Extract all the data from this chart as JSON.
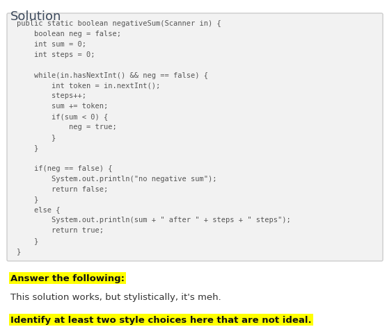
{
  "title": "Solution",
  "title_fontsize": 13,
  "title_color": "#3d4a5c",
  "code_box_bg": "#f2f2f2",
  "code_box_edge": "#cccccc",
  "code_lines": [
    "public static boolean negativeSum(Scanner in) {",
    "    boolean neg = false;",
    "    int sum = 0;",
    "    int steps = 0;",
    "",
    "    while(in.hasNextInt() && neg == false) {",
    "        int token = in.nextInt();",
    "        steps++;",
    "        sum += token;",
    "        if(sum < 0) {",
    "            neg = true;",
    "        }",
    "    }",
    "",
    "    if(neg == false) {",
    "        System.out.println(\"no negative sum\");",
    "        return false;",
    "    }",
    "    else {",
    "        System.out.println(sum + \" after \" + steps + \" steps\");",
    "        return true;",
    "    }",
    "}"
  ],
  "code_fontsize": 7.5,
  "code_font": "monospace",
  "code_color": "#555555",
  "highlight1_text": "Answer the following:",
  "highlight1_bg": "#ffff00",
  "highlight1_fontsize": 9.5,
  "body_text": "This solution works, but stylistically, it's meh.",
  "body_fontsize": 9.5,
  "body_color": "#333333",
  "highlight2_text": "Identify at least two style choices here that are not ideal.",
  "highlight2_bg": "#ffff00",
  "highlight2_fontsize": 9.5,
  "bg_color": "#ffffff",
  "fig_width": 5.56,
  "fig_height": 4.85,
  "dpi": 100
}
